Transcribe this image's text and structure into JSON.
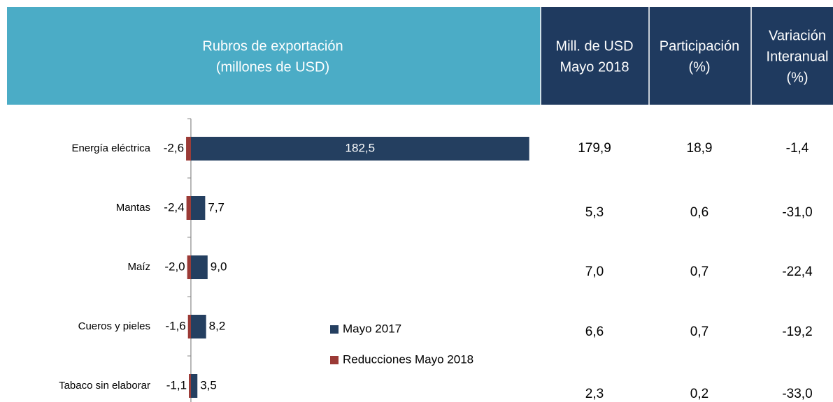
{
  "header": {
    "title": [
      "Rubros de exportación",
      "(millones de USD)"
    ],
    "columns": [
      [
        "Mill. de USD",
        "Mayo 2018"
      ],
      [
        "Participación",
        "(%)"
      ],
      [
        "Variación",
        "Interanual",
        "(%)"
      ]
    ]
  },
  "chart_data": {
    "type": "bar",
    "orientation": "horizontal",
    "categories": [
      "Energía eléctrica",
      "Mantas",
      "Maíz",
      "Cueros y pieles",
      "Tabaco sin elaborar"
    ],
    "series": [
      {
        "name": "Mayo 2017",
        "color": "#243f60",
        "values": [
          182.5,
          7.7,
          9.0,
          8.2,
          3.5
        ],
        "value_labels": [
          "182,5",
          "7,7",
          "9,0",
          "8,2",
          "3,5"
        ]
      },
      {
        "name": "Reducciones Mayo 2018",
        "color": "#9b3a36",
        "values": [
          -2.6,
          -2.4,
          -2.0,
          -1.6,
          -1.1
        ],
        "value_labels": [
          "-2,6",
          "-2,4",
          "-2,0",
          "-1,6",
          "-1,1"
        ]
      }
    ],
    "xlim": [
      -3,
      183
    ]
  },
  "table": {
    "rows": [
      [
        "179,9",
        "18,9",
        "-1,4"
      ],
      [
        "5,3",
        "0,6",
        "-31,0"
      ],
      [
        "7,0",
        "0,7",
        "-22,4"
      ],
      [
        "6,6",
        "0,7",
        "-19,2"
      ],
      [
        "2,3",
        "0,2",
        "-33,0"
      ]
    ]
  }
}
